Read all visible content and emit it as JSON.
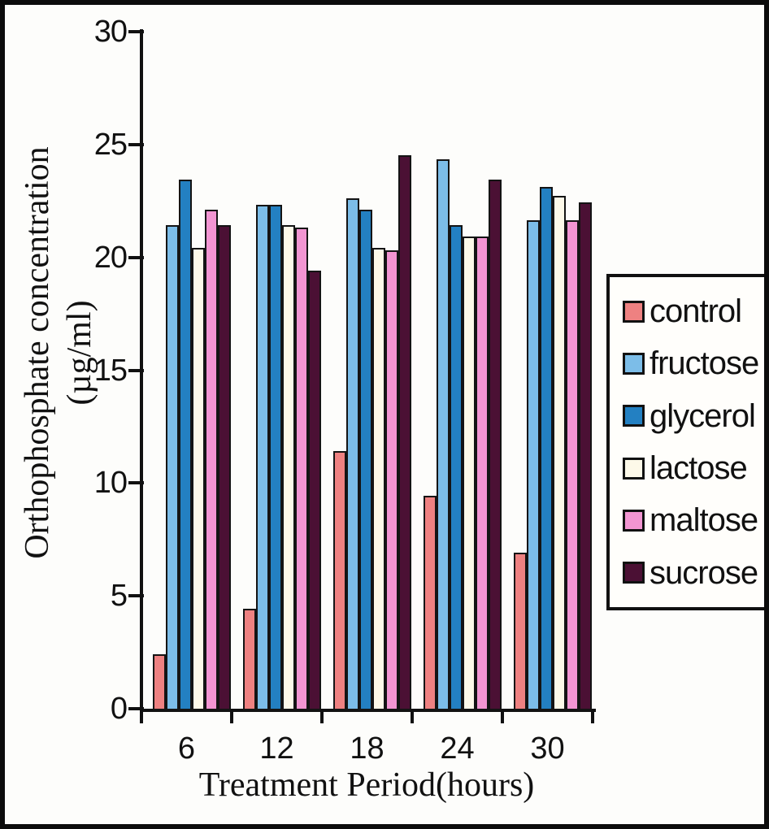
{
  "chart_data": {
    "type": "bar",
    "title": "",
    "xlabel": "Treatment Period(hours)",
    "ylabel": "Orthophosphate concentration (µg/ml)",
    "ylabel_lines": [
      "Orthophosphate concentration",
      "(µg/ml)"
    ],
    "categories": [
      "6",
      "12",
      "18",
      "24",
      "30"
    ],
    "series": [
      {
        "name": "control",
        "color": "#ee8181",
        "values": [
          2.5,
          4.5,
          11.5,
          9.5,
          7.0
        ]
      },
      {
        "name": "fructose",
        "color": "#7cbde8",
        "values": [
          21.5,
          22.4,
          22.7,
          24.4,
          21.7
        ]
      },
      {
        "name": "glycerol",
        "color": "#2380c2",
        "values": [
          23.5,
          22.4,
          22.2,
          21.5,
          23.2
        ]
      },
      {
        "name": "lactose",
        "color": "#fdf9e9",
        "values": [
          20.5,
          21.5,
          20.5,
          21.0,
          22.8
        ]
      },
      {
        "name": "maltose",
        "color": "#f295d2",
        "values": [
          22.2,
          21.4,
          20.4,
          21.0,
          21.7
        ]
      },
      {
        "name": "sucrose",
        "color": "#4b1034",
        "values": [
          21.5,
          19.5,
          24.6,
          23.5,
          22.5
        ]
      }
    ],
    "y_ticks": [
      0,
      5,
      10,
      15,
      20,
      25,
      30
    ],
    "ylim": [
      0,
      30
    ],
    "grid": false,
    "legend_position": "right",
    "legend_labels": [
      "control",
      "fructose",
      "glycerol",
      "lactose",
      "maltose",
      "sucrose"
    ],
    "ink_color": "#111111",
    "background_color": "#fdfdfb"
  }
}
